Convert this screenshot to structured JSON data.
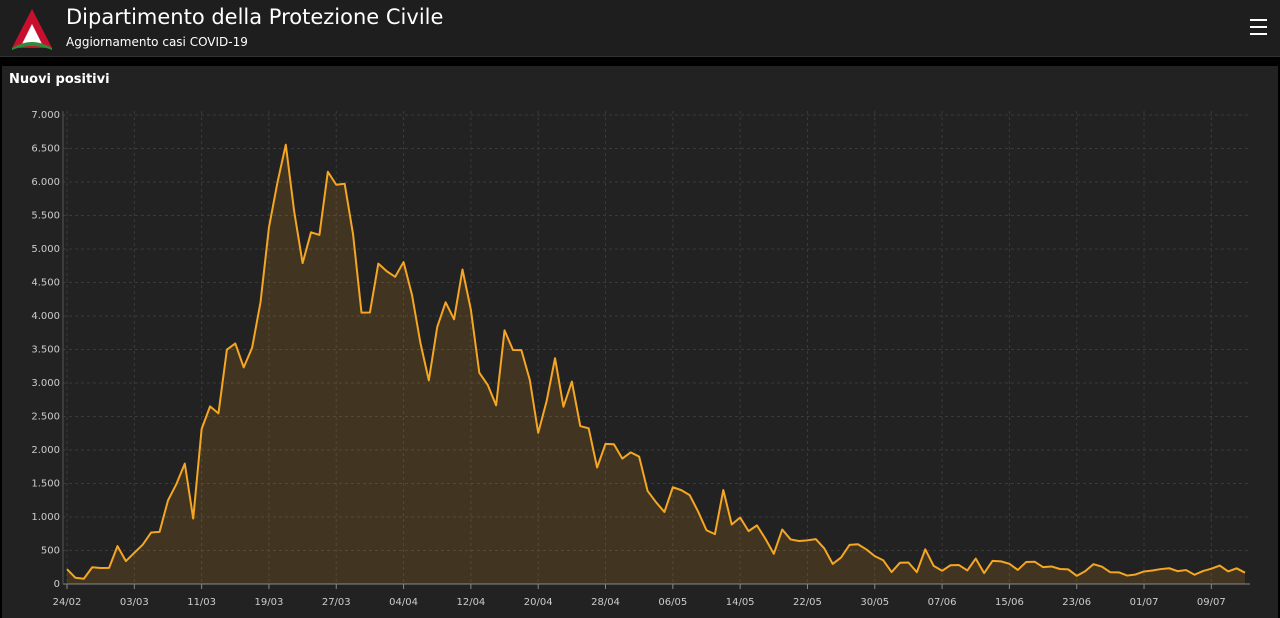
{
  "header": {
    "title": "Dipartimento della Protezione Civile",
    "subtitle": "Aggiornamento casi COVID-19"
  },
  "chart_data": {
    "type": "line",
    "title": "Nuovi positivi",
    "color": "#f5a623",
    "grid": true,
    "categories": [
      "24/02",
      null,
      null,
      null,
      null,
      null,
      null,
      null,
      "03/03",
      null,
      null,
      null,
      null,
      null,
      null,
      null,
      "11/03",
      null,
      null,
      null,
      null,
      null,
      null,
      null,
      "19/03",
      null,
      null,
      null,
      null,
      null,
      null,
      null,
      "27/03",
      null,
      null,
      null,
      null,
      null,
      null,
      null,
      "04/04",
      null,
      null,
      null,
      null,
      null,
      null,
      null,
      "12/04",
      null,
      null,
      null,
      null,
      null,
      null,
      null,
      "20/04",
      null,
      null,
      null,
      null,
      null,
      null,
      null,
      "28/04",
      null,
      null,
      null,
      null,
      null,
      null,
      null,
      "06/05",
      null,
      null,
      null,
      null,
      null,
      null,
      null,
      "14/05",
      null,
      null,
      null,
      null,
      null,
      null,
      null,
      "22/05",
      null,
      null,
      null,
      null,
      null,
      null,
      null,
      "30/05",
      null,
      null,
      null,
      null,
      null,
      null,
      null,
      "07/06",
      null,
      null,
      null,
      null,
      null,
      null,
      null,
      "15/06",
      null,
      null,
      null,
      null,
      null,
      null,
      null,
      "23/06",
      null,
      null,
      null,
      null,
      null,
      null,
      null,
      "01/07",
      null,
      null,
      null,
      null,
      null,
      null,
      null,
      "09/07",
      null,
      null,
      null,
      null
    ],
    "values": [
      221,
      93,
      78,
      250,
      238,
      240,
      566,
      342,
      466,
      587,
      769,
      778,
      1247,
      1492,
      1797,
      977,
      2313,
      2651,
      2547,
      3497,
      3590,
      3233,
      3526,
      4207,
      5322,
      5986,
      6557,
      5560,
      4789,
      5249,
      5210,
      6153,
      5959,
      5974,
      5217,
      4050,
      4053,
      4782,
      4668,
      4585,
      4805,
      4316,
      3599,
      3039,
      3836,
      4204,
      3951,
      4694,
      4092,
      3153,
      2972,
      2667,
      3786,
      3493,
      3491,
      3047,
      2256,
      2729,
      3370,
      2646,
      3021,
      2357,
      2324,
      1739,
      2091,
      2086,
      1872,
      1965,
      1900,
      1389,
      1221,
      1075,
      1444,
      1401,
      1327,
      1083,
      802,
      744,
      1402,
      888,
      992,
      789,
      875,
      675,
      451,
      813,
      665,
      642,
      652,
      669,
      531,
      300,
      397,
      584,
      593,
      516,
      416,
      355,
      178,
      318,
      321,
      177,
      518,
      270,
      197,
      280,
      283,
      202,
      379,
      163,
      346,
      338,
      301,
      210,
      329,
      333,
      251,
      262,
      224,
      218,
      122,
      190,
      296,
      259,
      175,
      174,
      126,
      142,
      187,
      201,
      223,
      235,
      192,
      208,
      138,
      193,
      229,
      276,
      188,
      234,
      169
    ],
    "ylim": [
      0,
      7000
    ],
    "yticks": [
      0,
      500,
      {
        "value": 1000,
        "label": "1.000"
      },
      {
        "value": 1500,
        "label": "1.500"
      },
      {
        "value": 2000,
        "label": "2.000"
      },
      {
        "value": 2500,
        "label": "2.500"
      },
      {
        "value": 3000,
        "label": "3.000"
      },
      {
        "value": 3500,
        "label": "3.500"
      },
      {
        "value": 4000,
        "label": "4.000"
      },
      {
        "value": 4500,
        "label": "4.500"
      },
      {
        "value": 5000,
        "label": "5.000"
      },
      {
        "value": 5500,
        "label": "5.500"
      },
      {
        "value": 6000,
        "label": "6.000"
      },
      {
        "value": 6500,
        "label": "6.500"
      },
      {
        "value": 7000,
        "label": "7.000"
      }
    ]
  }
}
